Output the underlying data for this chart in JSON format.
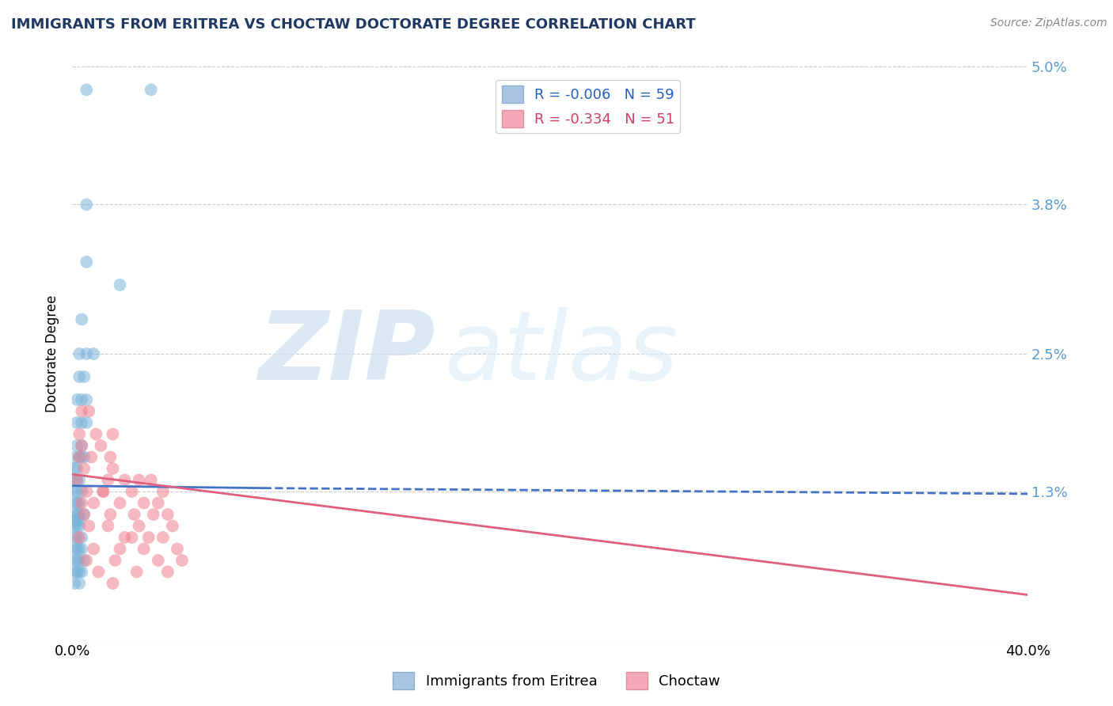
{
  "title": "IMMIGRANTS FROM ERITREA VS CHOCTAW DOCTORATE DEGREE CORRELATION CHART",
  "source_text": "Source: ZipAtlas.com",
  "ylabel": "Doctorate Degree",
  "xlim": [
    0.0,
    0.4
  ],
  "ylim": [
    0.0,
    0.05
  ],
  "yticks": [
    0.0,
    0.013,
    0.025,
    0.038,
    0.05
  ],
  "ytick_labels": [
    "",
    "1.3%",
    "2.5%",
    "3.8%",
    "5.0%"
  ],
  "xticks": [
    0.0,
    0.4
  ],
  "xtick_labels": [
    "0.0%",
    "40.0%"
  ],
  "blue_scatter": [
    [
      0.006,
      0.048
    ],
    [
      0.033,
      0.048
    ],
    [
      0.006,
      0.038
    ],
    [
      0.006,
      0.033
    ],
    [
      0.02,
      0.031
    ],
    [
      0.004,
      0.028
    ],
    [
      0.003,
      0.025
    ],
    [
      0.006,
      0.025
    ],
    [
      0.009,
      0.025
    ],
    [
      0.003,
      0.023
    ],
    [
      0.005,
      0.023
    ],
    [
      0.002,
      0.021
    ],
    [
      0.004,
      0.021
    ],
    [
      0.006,
      0.021
    ],
    [
      0.002,
      0.019
    ],
    [
      0.004,
      0.019
    ],
    [
      0.006,
      0.019
    ],
    [
      0.002,
      0.017
    ],
    [
      0.004,
      0.017
    ],
    [
      0.001,
      0.016
    ],
    [
      0.003,
      0.016
    ],
    [
      0.005,
      0.016
    ],
    [
      0.001,
      0.015
    ],
    [
      0.002,
      0.015
    ],
    [
      0.001,
      0.014
    ],
    [
      0.002,
      0.014
    ],
    [
      0.003,
      0.014
    ],
    [
      0.001,
      0.013
    ],
    [
      0.002,
      0.013
    ],
    [
      0.004,
      0.013
    ],
    [
      0.001,
      0.012
    ],
    [
      0.002,
      0.012
    ],
    [
      0.003,
      0.012
    ],
    [
      0.001,
      0.011
    ],
    [
      0.002,
      0.011
    ],
    [
      0.003,
      0.011
    ],
    [
      0.005,
      0.011
    ],
    [
      0.001,
      0.0105
    ],
    [
      0.002,
      0.0105
    ],
    [
      0.003,
      0.0105
    ],
    [
      0.001,
      0.01
    ],
    [
      0.002,
      0.01
    ],
    [
      0.003,
      0.01
    ],
    [
      0.001,
      0.009
    ],
    [
      0.002,
      0.009
    ],
    [
      0.004,
      0.009
    ],
    [
      0.001,
      0.008
    ],
    [
      0.002,
      0.008
    ],
    [
      0.003,
      0.008
    ],
    [
      0.004,
      0.008
    ],
    [
      0.001,
      0.007
    ],
    [
      0.002,
      0.007
    ],
    [
      0.003,
      0.007
    ],
    [
      0.005,
      0.007
    ],
    [
      0.001,
      0.006
    ],
    [
      0.002,
      0.006
    ],
    [
      0.003,
      0.006
    ],
    [
      0.004,
      0.006
    ],
    [
      0.001,
      0.005
    ],
    [
      0.003,
      0.005
    ],
    [
      0.004,
      0.016
    ]
  ],
  "pink_scatter": [
    [
      0.004,
      0.02
    ],
    [
      0.007,
      0.02
    ],
    [
      0.003,
      0.018
    ],
    [
      0.01,
      0.018
    ],
    [
      0.017,
      0.018
    ],
    [
      0.004,
      0.017
    ],
    [
      0.012,
      0.017
    ],
    [
      0.003,
      0.016
    ],
    [
      0.008,
      0.016
    ],
    [
      0.016,
      0.016
    ],
    [
      0.005,
      0.015
    ],
    [
      0.017,
      0.015
    ],
    [
      0.002,
      0.014
    ],
    [
      0.015,
      0.014
    ],
    [
      0.022,
      0.014
    ],
    [
      0.028,
      0.014
    ],
    [
      0.033,
      0.014
    ],
    [
      0.006,
      0.013
    ],
    [
      0.013,
      0.013
    ],
    [
      0.025,
      0.013
    ],
    [
      0.038,
      0.013
    ],
    [
      0.004,
      0.012
    ],
    [
      0.009,
      0.012
    ],
    [
      0.02,
      0.012
    ],
    [
      0.03,
      0.012
    ],
    [
      0.036,
      0.012
    ],
    [
      0.005,
      0.011
    ],
    [
      0.016,
      0.011
    ],
    [
      0.026,
      0.011
    ],
    [
      0.034,
      0.011
    ],
    [
      0.04,
      0.011
    ],
    [
      0.007,
      0.01
    ],
    [
      0.015,
      0.01
    ],
    [
      0.028,
      0.01
    ],
    [
      0.042,
      0.01
    ],
    [
      0.003,
      0.009
    ],
    [
      0.022,
      0.009
    ],
    [
      0.032,
      0.009
    ],
    [
      0.038,
      0.009
    ],
    [
      0.009,
      0.008
    ],
    [
      0.02,
      0.008
    ],
    [
      0.03,
      0.008
    ],
    [
      0.044,
      0.008
    ],
    [
      0.006,
      0.007
    ],
    [
      0.018,
      0.007
    ],
    [
      0.036,
      0.007
    ],
    [
      0.046,
      0.007
    ],
    [
      0.011,
      0.006
    ],
    [
      0.027,
      0.006
    ],
    [
      0.04,
      0.006
    ],
    [
      0.017,
      0.005
    ],
    [
      0.013,
      0.013
    ],
    [
      0.025,
      0.009
    ]
  ],
  "blue_line_solid": {
    "x0": 0.0,
    "x1": 0.08,
    "y0": 0.0135,
    "y1": 0.0133
  },
  "blue_line_dashed": {
    "x0": 0.08,
    "x1": 0.4,
    "y0": 0.0133,
    "y1": 0.0128
  },
  "pink_line": {
    "x0": 0.0,
    "x1": 0.4,
    "y0": 0.0145,
    "y1": 0.004
  },
  "blue_color": "#7ab3d9",
  "pink_color": "#f08090",
  "blue_line_color": "#4472c4",
  "pink_line_color": "#e06080",
  "background_color": "#ffffff",
  "grid_color": "#cccccc"
}
